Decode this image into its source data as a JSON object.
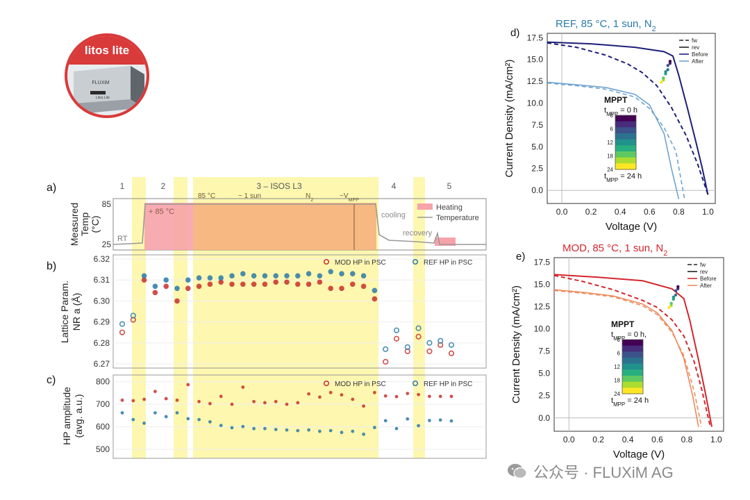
{
  "logo": {
    "text": "litos lite",
    "device_brand": "FLUXiM",
    "device_label": "Litos Lite",
    "ring_color": "#d93a3a"
  },
  "watermark": {
    "text": "公众号 · FLUXiM AG"
  },
  "colors": {
    "mod": "#c9302c",
    "ref": "#2b7aa8",
    "heating": "#f6a3a9",
    "yellow": "#fdf7b0",
    "orange": "#f8b47e",
    "ref_before": "#1c1f78",
    "ref_after": "#6ea3cf",
    "mod_before": "#d4252b",
    "mod_after": "#ee8a5c"
  },
  "chart_data": [
    {
      "panel": "a)",
      "type": "line",
      "ylabel": "Measured Temp (°C)",
      "yticks": [
        "25",
        "85"
      ],
      "phase_numbers": [
        "1",
        "2",
        "3 – ISOS L3",
        "4",
        "5"
      ],
      "phase3_annotations": [
        "85 °C",
        "~ 1 sun",
        "N2",
        "~VMPP"
      ],
      "annotations": [
        "+ 85 °C",
        "RT",
        "cooling",
        "recovery"
      ],
      "legend": [
        "Heating",
        "Temperature"
      ],
      "series": [
        {
          "name": "Temperature",
          "phases": [
            "RT",
            "85 °C",
            "85 °C",
            "cooling",
            "recovery"
          ]
        }
      ]
    },
    {
      "panel": "b)",
      "type": "scatter",
      "ylabel": "Lattice Param. NR a (Å)",
      "yticks": [
        "6.27",
        "6.28",
        "6.29",
        "6.30",
        "6.31",
        "6.32"
      ],
      "ylim": [
        6.268,
        6.322
      ],
      "legend": [
        "MOD HP in PSC",
        "REF HP in PSC"
      ],
      "series": [
        {
          "name": "MOD HP in PSC",
          "values": [
            6.285,
            6.291,
            6.31,
            6.304,
            6.307,
            6.3,
            6.306,
            6.307,
            6.308,
            6.309,
            6.308,
            6.308,
            6.308,
            6.308,
            6.309,
            6.309,
            6.308,
            6.308,
            6.309,
            6.306,
            6.306,
            6.308,
            6.307,
            6.301,
            6.271,
            6.282,
            6.276,
            6.283,
            6.276,
            6.279,
            6.275
          ]
        },
        {
          "name": "REF HP in PSC",
          "values": [
            6.289,
            6.293,
            6.312,
            6.307,
            6.31,
            6.306,
            6.31,
            6.311,
            6.311,
            6.311,
            6.312,
            6.313,
            6.312,
            6.312,
            6.312,
            6.312,
            6.312,
            6.313,
            6.312,
            6.314,
            6.313,
            6.313,
            6.312,
            6.305,
            6.277,
            6.286,
            6.278,
            6.287,
            6.28,
            6.281,
            6.279
          ]
        }
      ]
    },
    {
      "panel": "c)",
      "type": "scatter",
      "ylabel": "HP amplitude (avg. a.u.)",
      "yticks": [
        "500",
        "600",
        "700",
        "800"
      ],
      "ylim": [
        460,
        830
      ],
      "legend": [
        "MOD HP in PSC",
        "REF HP in PSC"
      ],
      "series": [
        {
          "name": "MOD HP in PSC",
          "values": [
            718,
            716,
            722,
            757,
            725,
            718,
            787,
            712,
            703,
            735,
            700,
            776,
            712,
            707,
            712,
            700,
            707,
            746,
            732,
            752,
            742,
            722,
            692,
            752,
            737,
            734,
            748,
            743,
            735,
            735,
            735
          ]
        },
        {
          "name": "REF HP in PSC",
          "values": [
            662,
            632,
            616,
            662,
            645,
            662,
            636,
            632,
            622,
            606,
            596,
            601,
            592,
            592,
            588,
            586,
            583,
            586,
            580,
            583,
            575,
            580,
            567,
            597,
            627,
            592,
            635,
            605,
            628,
            630,
            626
          ]
        }
      ]
    },
    {
      "panel": "d)",
      "type": "line",
      "title": "REF, 85 °C, 1 sun, N2",
      "xlabel": "Voltage (V)",
      "ylabel": "Current Density (mA/cm²)",
      "xlim": [
        -0.1,
        1.05
      ],
      "ylim": [
        -1.5,
        18.0
      ],
      "xticks": [
        "0.0",
        "0.2",
        "0.4",
        "0.6",
        "0.8",
        "1.0"
      ],
      "yticks": [
        "0.0",
        "2.5",
        "5.0",
        "7.5",
        "10.0",
        "12.5",
        "15.0",
        "17.5"
      ],
      "legend": [
        "fw",
        "rev",
        "Before",
        "After"
      ],
      "inset": {
        "title": "MPPT",
        "top_label": "tMPP = 0 h",
        "bottom_label": "tMPP = 24 h",
        "ticks": [
          "0",
          "6",
          "12",
          "18",
          "24"
        ]
      },
      "series": [
        {
          "name": "Before rev",
          "x": [
            -0.1,
            0.2,
            0.5,
            0.7,
            0.76,
            0.8,
            0.86,
            0.92,
            0.96,
            1.0
          ],
          "y": [
            17.0,
            16.8,
            16.4,
            15.9,
            15.4,
            13.2,
            9.4,
            5.4,
            2.6,
            -0.5
          ]
        },
        {
          "name": "Before fw",
          "x": [
            -0.1,
            0.1,
            0.3,
            0.45,
            0.55,
            0.65,
            0.75,
            0.85,
            0.93,
            1.0
          ],
          "y": [
            16.9,
            16.4,
            15.5,
            14.5,
            13.5,
            12.0,
            9.5,
            6.3,
            3.0,
            -0.5
          ]
        },
        {
          "name": "After rev",
          "x": [
            -0.1,
            0.1,
            0.3,
            0.5,
            0.6,
            0.7,
            0.75,
            0.8
          ],
          "y": [
            12.4,
            12.1,
            11.8,
            11.0,
            9.8,
            6.5,
            2.5,
            -1.0
          ]
        },
        {
          "name": "After fw",
          "x": [
            -0.1,
            0.1,
            0.3,
            0.5,
            0.6,
            0.7,
            0.78,
            0.84
          ],
          "y": [
            12.3,
            12.0,
            11.6,
            10.7,
            9.4,
            7.2,
            4.5,
            -1.0
          ]
        }
      ]
    },
    {
      "panel": "e)",
      "type": "line",
      "title": "MOD, 85 °C, 1 sun, N2",
      "xlabel": "Voltage (V)",
      "ylabel": "Current Density (mA/cm²)",
      "xlim": [
        -0.1,
        1.05
      ],
      "ylim": [
        -1.5,
        18.0
      ],
      "xticks": [
        "0.0",
        "0.2",
        "0.4",
        "0.6",
        "0.8",
        "1.0"
      ],
      "yticks": [
        "0.0",
        "2.5",
        "5.0",
        "7.5",
        "10.0",
        "12.5",
        "15.0",
        "17.5"
      ],
      "legend": [
        "fw",
        "rev",
        "Before",
        "After"
      ],
      "inset": {
        "title": "MPPT",
        "top_label": "tMPP = 0 h,",
        "bottom_label": "tMPP = 24 h",
        "ticks": [
          "0",
          "6",
          "12",
          "18",
          "24"
        ]
      },
      "series": [
        {
          "name": "Before rev",
          "x": [
            -0.1,
            0.2,
            0.5,
            0.7,
            0.78,
            0.82,
            0.88,
            0.93,
            0.97
          ],
          "y": [
            16.1,
            15.8,
            15.4,
            14.5,
            13.4,
            11.0,
            6.5,
            2.5,
            -1.0
          ]
        },
        {
          "name": "Before fw",
          "x": [
            -0.1,
            0.1,
            0.3,
            0.5,
            0.6,
            0.7,
            0.78,
            0.85,
            0.9,
            0.96
          ],
          "y": [
            16.0,
            15.3,
            14.4,
            13.2,
            12.4,
            11.0,
            9.2,
            6.3,
            3.3,
            -1.0
          ]
        },
        {
          "name": "After rev",
          "x": [
            -0.1,
            0.1,
            0.3,
            0.5,
            0.6,
            0.7,
            0.78,
            0.84,
            0.88
          ],
          "y": [
            14.4,
            14.1,
            13.7,
            12.8,
            11.8,
            9.8,
            6.7,
            2.5,
            -1.0
          ]
        },
        {
          "name": "After fw",
          "x": [
            -0.1,
            0.1,
            0.3,
            0.5,
            0.6,
            0.7,
            0.78,
            0.85,
            0.9
          ],
          "y": [
            14.3,
            14.0,
            13.6,
            12.6,
            11.6,
            9.6,
            7.0,
            3.0,
            -1.0
          ]
        }
      ]
    }
  ]
}
